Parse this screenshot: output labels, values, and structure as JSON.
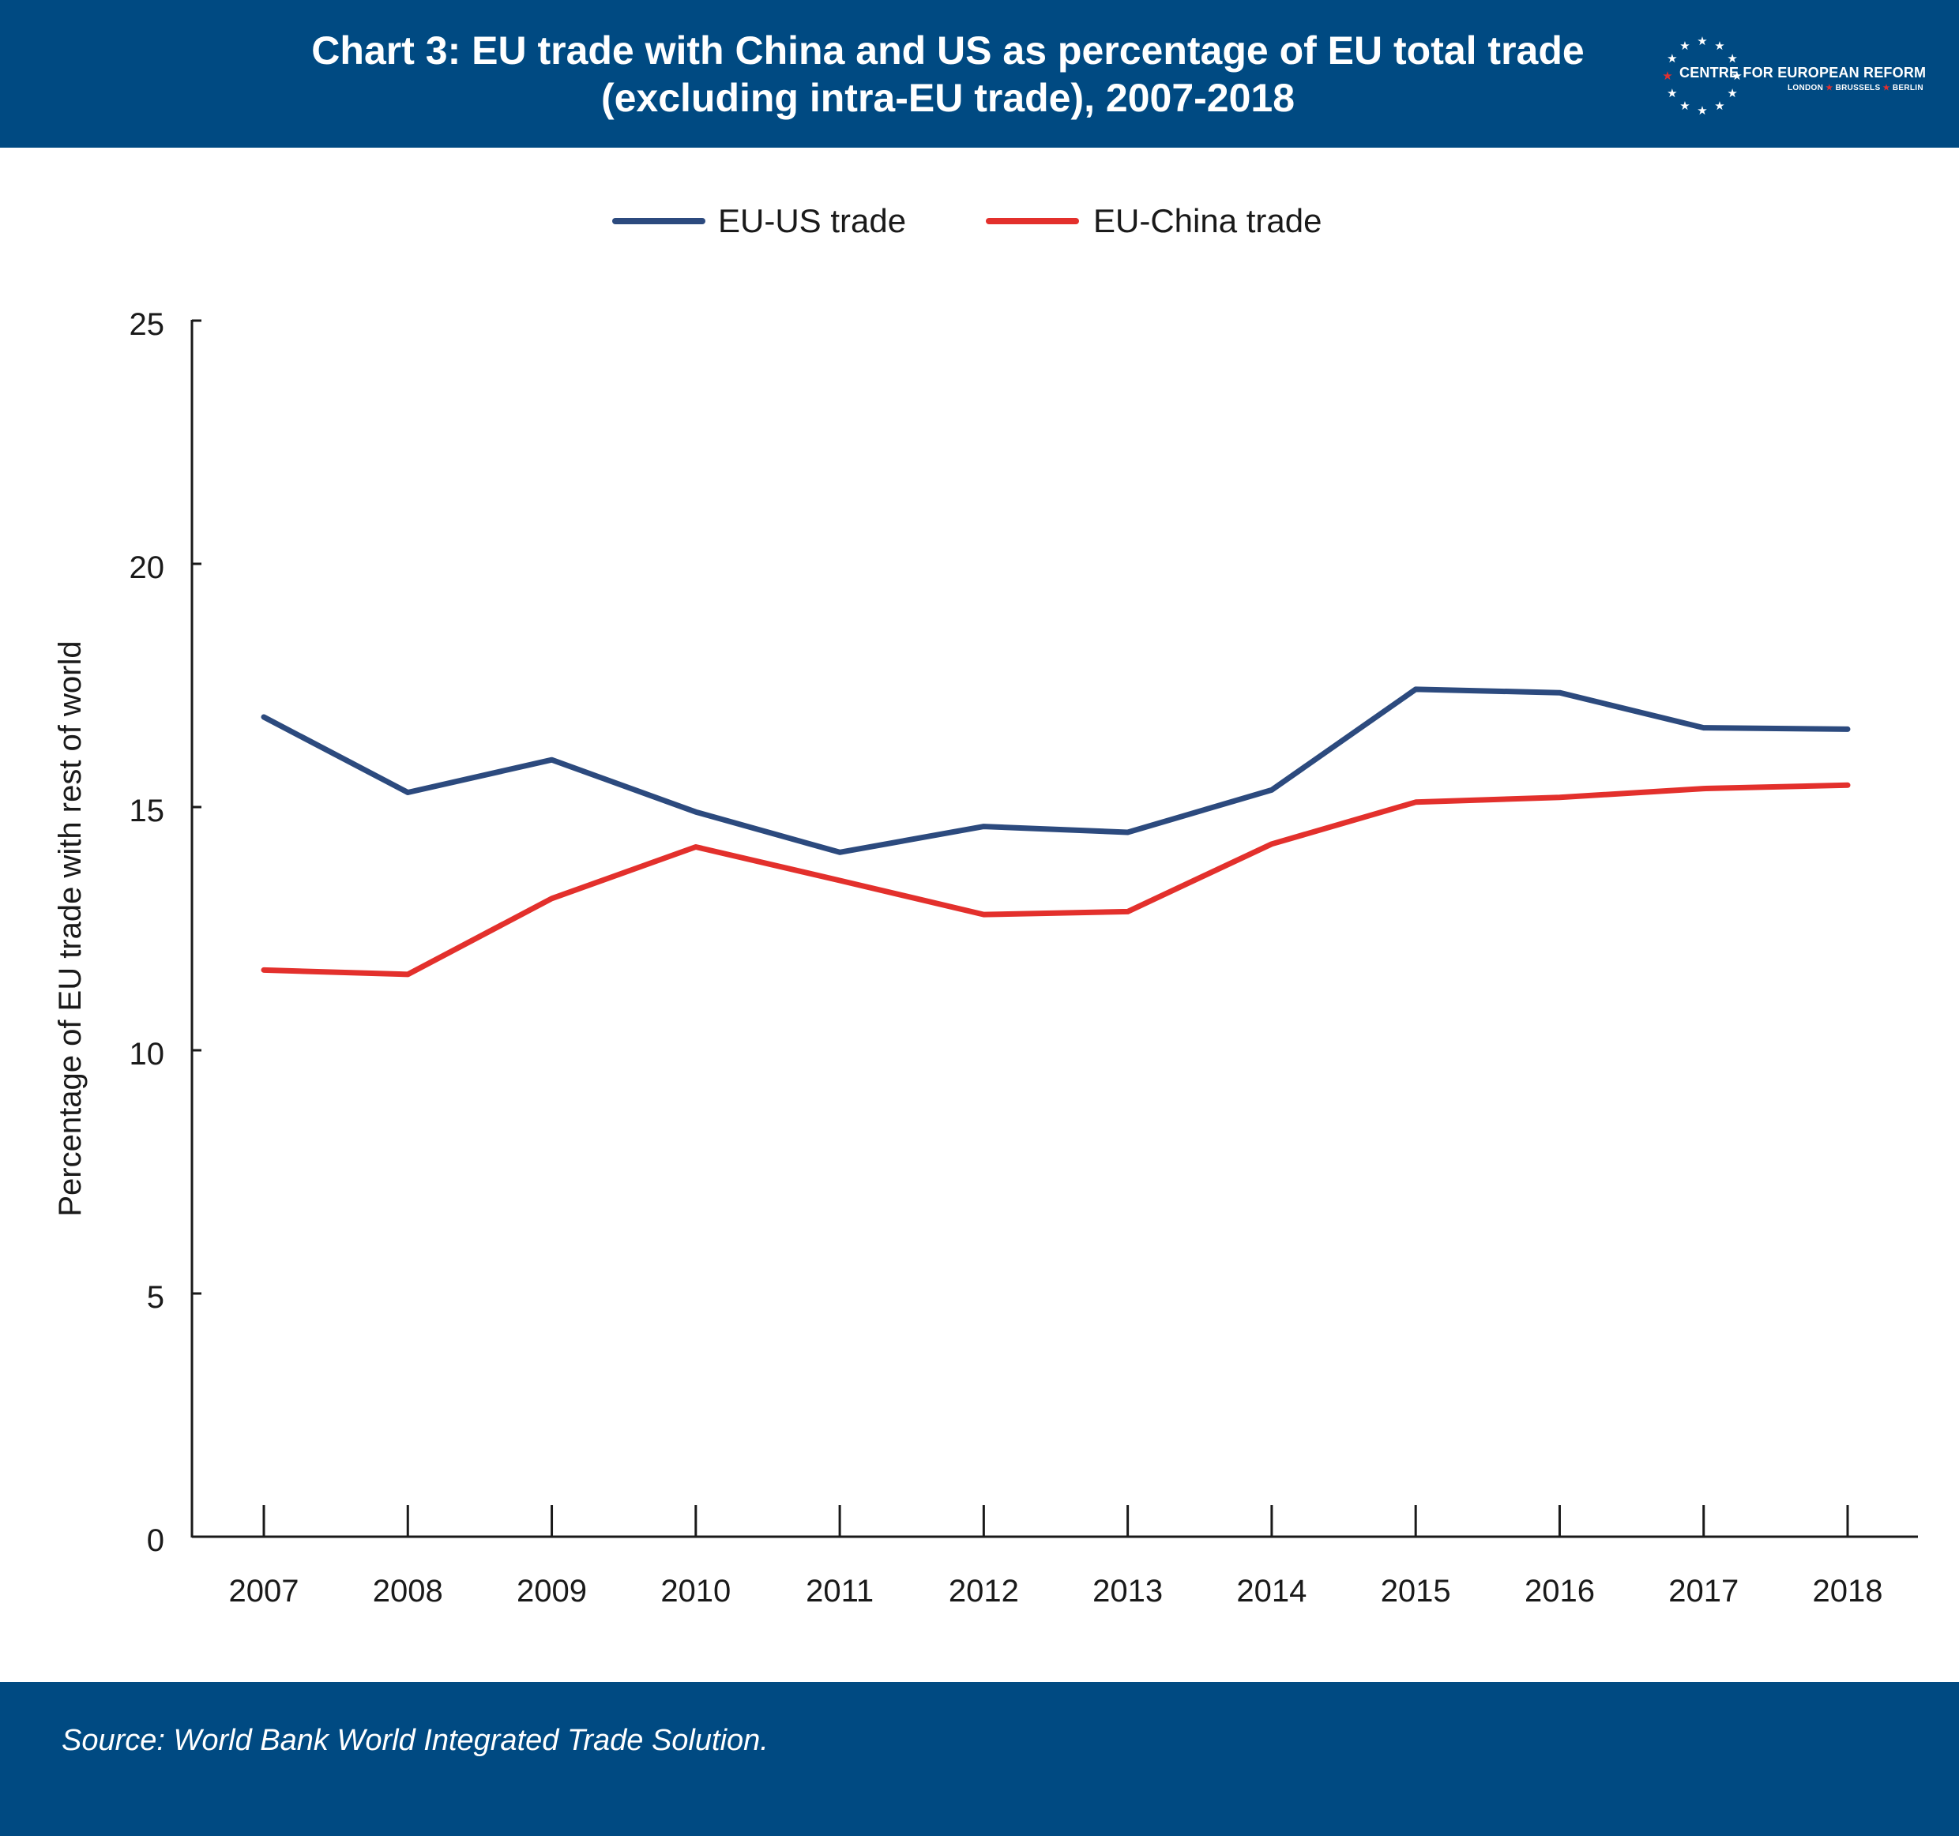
{
  "header": {
    "title_line1": "Chart 3: EU trade with China and US as percentage of EU total trade",
    "title_line2": "(excluding intra-EU trade), 2007-2018",
    "background_color": "#004a82"
  },
  "logo": {
    "name": "CENTRE FOR EUROPEAN REFORM",
    "city1": "LONDON",
    "city2": "BRUSSELS",
    "city3": "BERLIN",
    "star_color": "#ffffff",
    "accent_color": "#e03030"
  },
  "footer": {
    "source": "Source: World Bank World Integrated Trade Solution."
  },
  "chart_data": {
    "type": "line",
    "title": "Chart 3: EU trade with China and US as percentage of EU total trade (excluding intra-EU trade), 2007-2018",
    "xlabel": "",
    "ylabel": "Percentage of EU trade with rest of world",
    "categories": [
      "2007",
      "2008",
      "2009",
      "2010",
      "2011",
      "2012",
      "2013",
      "2014",
      "2015",
      "2016",
      "2017",
      "2018"
    ],
    "ylim": [
      0,
      25
    ],
    "yticks": [
      "0",
      "5",
      "10",
      "15",
      "20",
      "25"
    ],
    "grid": false,
    "legend_position": "top-center",
    "series": [
      {
        "name": "EU-US trade",
        "color": "#2c4a7e",
        "values": [
          16.85,
          15.3,
          15.97,
          14.9,
          14.07,
          14.6,
          14.48,
          15.35,
          17.42,
          17.35,
          16.63,
          16.6
        ]
      },
      {
        "name": "EU-China trade",
        "color": "#e3302c",
        "values": [
          11.65,
          11.56,
          13.12,
          14.18,
          13.49,
          12.79,
          12.85,
          14.24,
          15.1,
          15.2,
          15.38,
          15.45
        ]
      }
    ]
  }
}
